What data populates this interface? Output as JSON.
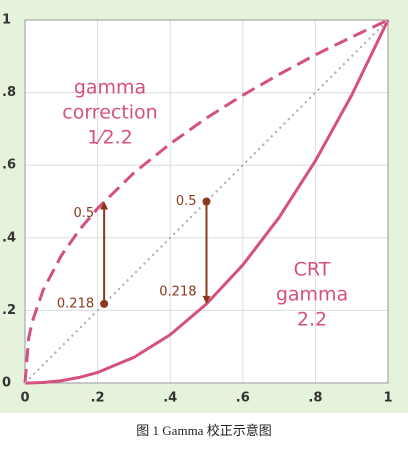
{
  "chart_data": {
    "type": "line",
    "caption": "图 1 Gamma 校正示意图",
    "x": [
      0,
      0.01,
      0.02,
      0.05,
      0.1,
      0.15,
      0.2,
      0.3,
      0.4,
      0.5,
      0.6,
      0.7,
      0.8,
      0.9,
      1
    ],
    "series": [
      {
        "color": "#d6507f",
        "style": "dashed",
        "values": [
          0,
          0.123,
          0.169,
          0.256,
          0.351,
          0.422,
          0.481,
          0.579,
          0.659,
          0.73,
          0.793,
          0.85,
          0.904,
          0.953,
          1
        ]
      },
      {
        "color": "#d6507f",
        "style": "solid",
        "values": [
          0,
          4e-05,
          0.0002,
          0.0014,
          0.0063,
          0.0154,
          0.029,
          0.0707,
          0.133,
          0.218,
          0.325,
          0.456,
          0.612,
          0.793,
          1
        ]
      },
      {
        "color": "#aaaaaa",
        "style": "dotted",
        "values": [
          0,
          0.01,
          0.02,
          0.05,
          0.1,
          0.15,
          0.2,
          0.3,
          0.4,
          0.5,
          0.6,
          0.7,
          0.8,
          0.9,
          1
        ]
      }
    ],
    "arrows": [
      {
        "x": 0.218,
        "from": 0.218,
        "to": 0.5,
        "from_label": "0.218",
        "to_label": "0.5"
      },
      {
        "x": 0.5,
        "from": 0.5,
        "to": 0.218,
        "from_label": "0.5",
        "to_label": "0.218"
      }
    ],
    "arrow_color": "#8b3a1e",
    "annotations": [
      [
        "gamma",
        "correction",
        "1⁄2.2"
      ],
      [
        "CRT",
        "gamma",
        "2.2"
      ]
    ],
    "annotation_color": "#d6507f",
    "xlim": [
      0,
      1
    ],
    "ylim": [
      0,
      1
    ],
    "xticks": [
      0,
      {
        "value": 0.2,
        "label": ".2"
      },
      {
        "value": 0.4,
        "label": ".4"
      },
      {
        "value": 0.6,
        "label": ".6"
      },
      {
        "value": 0.8,
        "label": ".8"
      },
      1
    ],
    "yticks": [
      0,
      {
        "value": 0.2,
        "label": ".2"
      },
      {
        "value": 0.4,
        "label": ".4"
      },
      {
        "value": 0.6,
        "label": ".6"
      },
      {
        "value": 0.8,
        "label": ".8"
      },
      1
    ],
    "grid": true
  }
}
